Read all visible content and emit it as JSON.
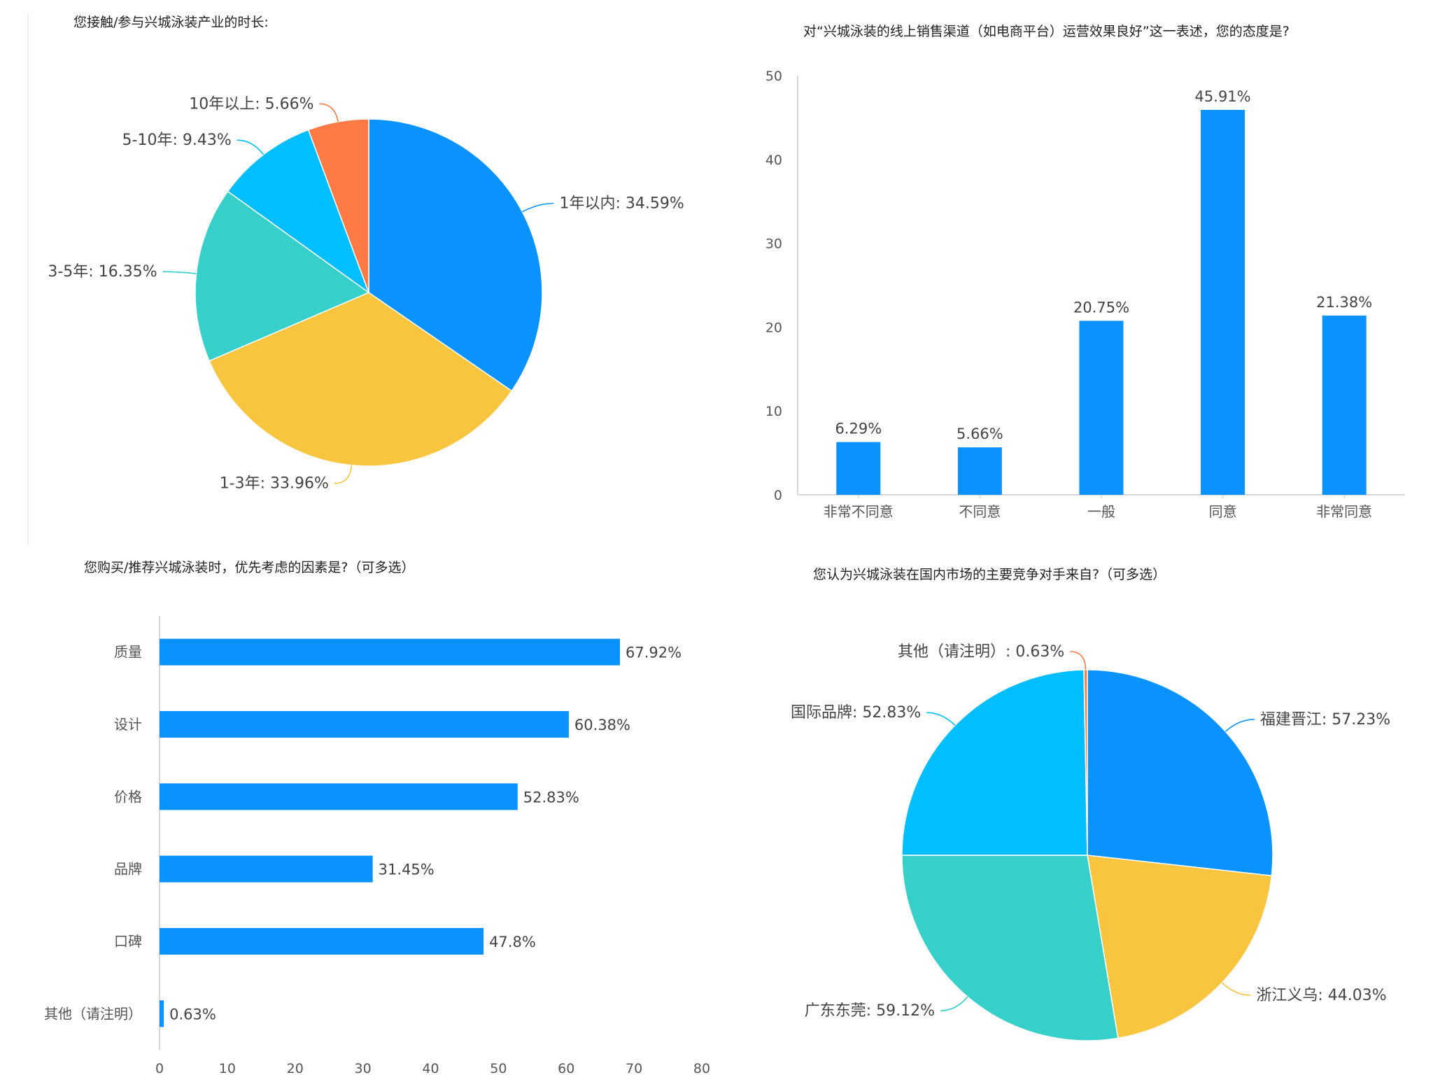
{
  "colors": {
    "blue": "#0A92FF",
    "yellow": "#FAC53E",
    "teal": "#36CFC9",
    "sky": "#00BEFF",
    "orange": "#FF7A45",
    "axis": "#cccccc"
  },
  "chart_data": [
    {
      "type": "pie",
      "title": "您接触/参与兴城泳装产业的时长:",
      "slices": [
        {
          "label": "1年以内",
          "value": 34.59,
          "text": "1年以内: 34.59%",
          "color": "#0A92FF"
        },
        {
          "label": "1-3年",
          "value": 33.96,
          "text": "1-3年: 33.96%",
          "color": "#FAC53E"
        },
        {
          "label": "3-5年",
          "value": 16.35,
          "text": "3-5年: 16.35%",
          "color": "#36CFC9"
        },
        {
          "label": "5-10年",
          "value": 9.43,
          "text": "5-10年: 9.43%",
          "color": "#00BEFF"
        },
        {
          "label": "10年以上",
          "value": 5.66,
          "text": "10年以上: 5.66%",
          "color": "#FF7A45"
        }
      ]
    },
    {
      "type": "bar",
      "title": "对“兴城泳装的线上销售渠道（如电商平台）运营效果良好”这一表述，您的态度是?",
      "categories": [
        "非常不同意",
        "不同意",
        "一般",
        "同意",
        "非常同意"
      ],
      "values": [
        6.29,
        5.66,
        20.75,
        45.91,
        21.38
      ],
      "value_labels": [
        "6.29%",
        "5.66%",
        "20.75%",
        "45.91%",
        "21.38%"
      ],
      "ylim": [
        0,
        50
      ],
      "yticks": [
        "0",
        "10",
        "20",
        "30",
        "40",
        "50"
      ]
    },
    {
      "type": "bar",
      "orientation": "horizontal",
      "title": "您购买/推荐兴城泳装时，优先考虑的因素是?（可多选）",
      "categories": [
        "质量",
        "设计",
        "价格",
        "品牌",
        "口碑",
        "其他（请注明）"
      ],
      "values": [
        67.92,
        60.38,
        52.83,
        31.45,
        47.8,
        0.63
      ],
      "value_labels": [
        "67.92%",
        "60.38%",
        "52.83%",
        "31.45%",
        "47.8%",
        "0.63%"
      ],
      "xlim": [
        0,
        80
      ],
      "xticks": [
        "0",
        "10",
        "20",
        "30",
        "40",
        "50",
        "60",
        "70",
        "80"
      ]
    },
    {
      "type": "pie",
      "title": "您认为兴城泳装在国内市场的主要竞争对手来自?（可多选）",
      "slices": [
        {
          "label": "福建晋江",
          "value": 57.23,
          "text": "福建晋江: 57.23%",
          "color": "#0A92FF"
        },
        {
          "label": "浙江义乌",
          "value": 44.03,
          "text": "浙江义乌: 44.03%",
          "color": "#FAC53E"
        },
        {
          "label": "广东东莞",
          "value": 59.12,
          "text": "广东东莞: 59.12%",
          "color": "#36CFC9"
        },
        {
          "label": "国际品牌",
          "value": 52.83,
          "text": "国际品牌: 52.83%",
          "color": "#00BEFF"
        },
        {
          "label": "其他（请注明）",
          "value": 0.63,
          "text": "其他（请注明）: 0.63%",
          "color": "#FF7A45"
        }
      ]
    }
  ]
}
